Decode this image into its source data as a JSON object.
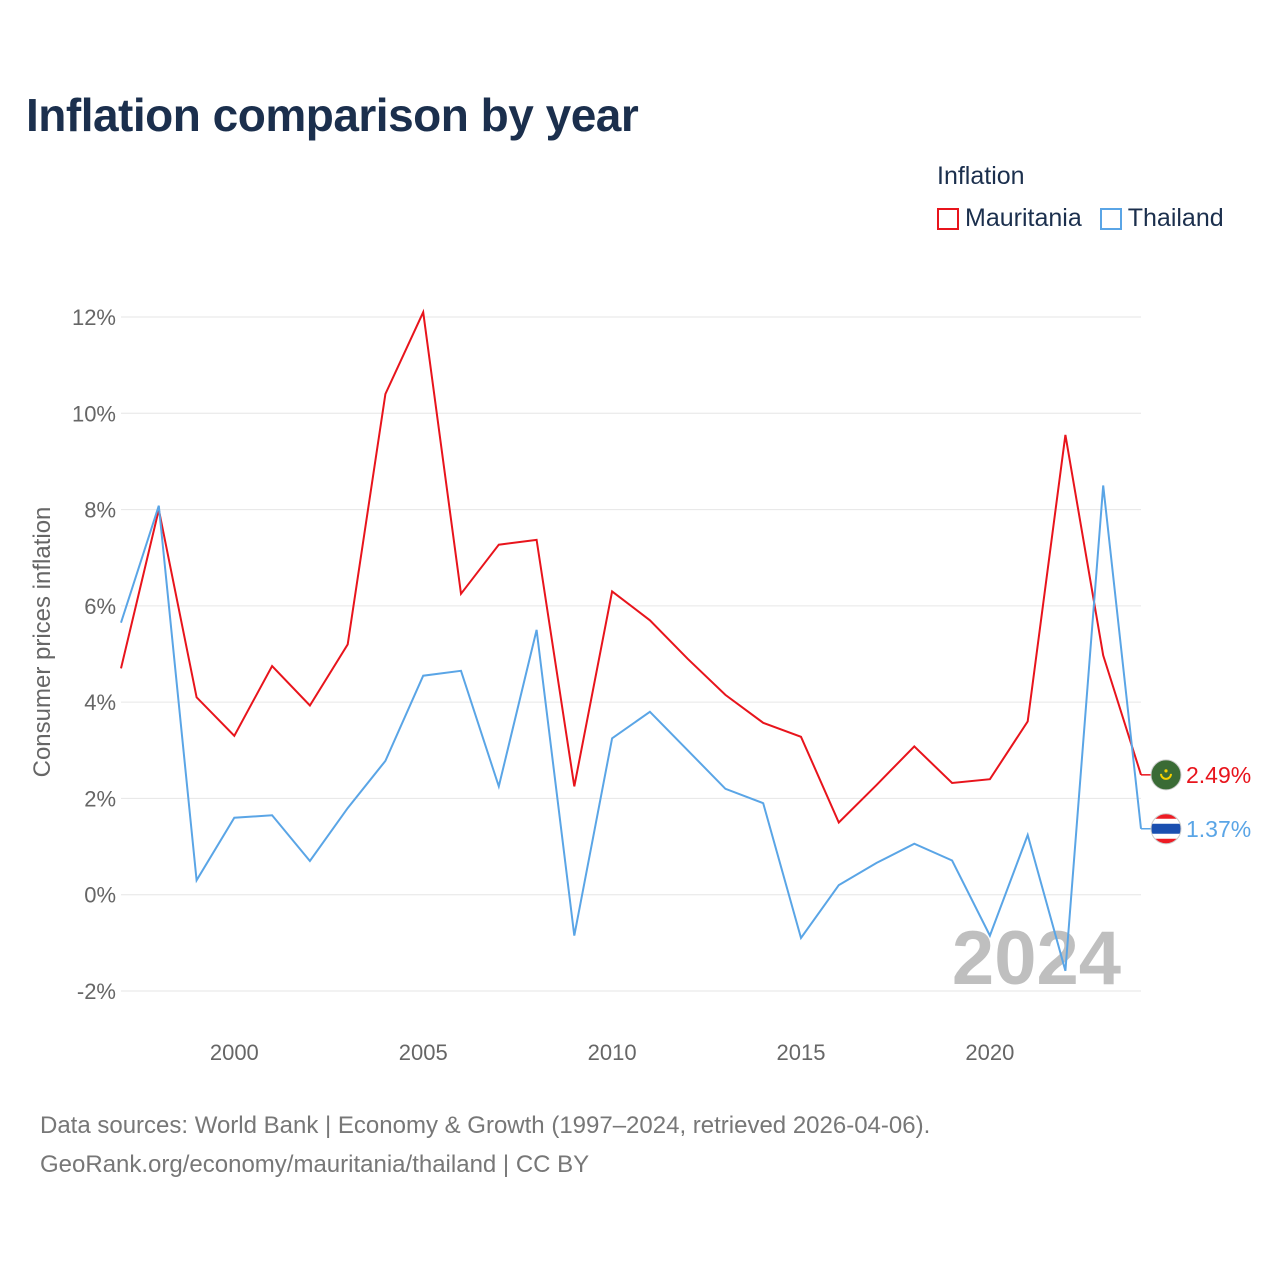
{
  "title": "Inflation comparison by year",
  "legend": {
    "title": "Inflation",
    "items": [
      {
        "label": "Mauritania",
        "color": "#e8141c"
      },
      {
        "label": "Thailand",
        "color": "#5aa5e6"
      }
    ]
  },
  "footer": {
    "line1": "Data sources: World Bank | Economy & Growth (1997–2024, retrieved 2026-04-06).",
    "line2": "GeoRank.org/economy/mauritania/thailand | CC BY"
  },
  "chart_data": {
    "type": "line",
    "title": "Inflation comparison by year",
    "xlabel": "",
    "ylabel": "Consumer prices inflation",
    "xlim": [
      1997,
      2024
    ],
    "ylim": [
      -2,
      12
    ],
    "y_ticks": [
      -2,
      0,
      2,
      4,
      6,
      8,
      10,
      12
    ],
    "y_tick_labels": [
      "-2%",
      "0%",
      "2%",
      "4%",
      "6%",
      "8%",
      "10%",
      "12%"
    ],
    "x_ticks": [
      2000,
      2005,
      2010,
      2015,
      2020
    ],
    "x_tick_labels": [
      "2000",
      "2005",
      "2010",
      "2015",
      "2020"
    ],
    "grid": true,
    "current_year": "2024",
    "x": [
      1997,
      1998,
      1999,
      2000,
      2001,
      2002,
      2003,
      2004,
      2005,
      2006,
      2007,
      2008,
      2009,
      2010,
      2011,
      2012,
      2013,
      2014,
      2015,
      2016,
      2017,
      2018,
      2019,
      2020,
      2021,
      2022,
      2023,
      2024
    ],
    "series": [
      {
        "name": "Mauritania",
        "color": "#e8141c",
        "end_label": "2.49%",
        "flag": "mauritania-flag",
        "values": [
          4.7,
          8.0,
          4.1,
          3.3,
          4.75,
          3.93,
          5.2,
          10.4,
          12.1,
          6.25,
          7.27,
          7.37,
          2.25,
          6.3,
          5.7,
          4.9,
          4.15,
          3.57,
          3.28,
          1.5,
          2.28,
          3.08,
          2.32,
          2.4,
          3.6,
          9.55,
          4.97,
          2.49
        ]
      },
      {
        "name": "Thailand",
        "color": "#5aa5e6",
        "end_label": "1.37%",
        "flag": "thailand-flag",
        "values": [
          5.65,
          8.08,
          0.3,
          1.6,
          1.65,
          0.7,
          1.8,
          2.78,
          4.55,
          4.65,
          2.25,
          5.5,
          -0.85,
          3.25,
          3.8,
          3.0,
          2.2,
          1.9,
          -0.9,
          0.2,
          0.66,
          1.06,
          0.71,
          -0.85,
          1.24,
          -1.58,
          8.5,
          1.37
        ]
      }
    ]
  }
}
